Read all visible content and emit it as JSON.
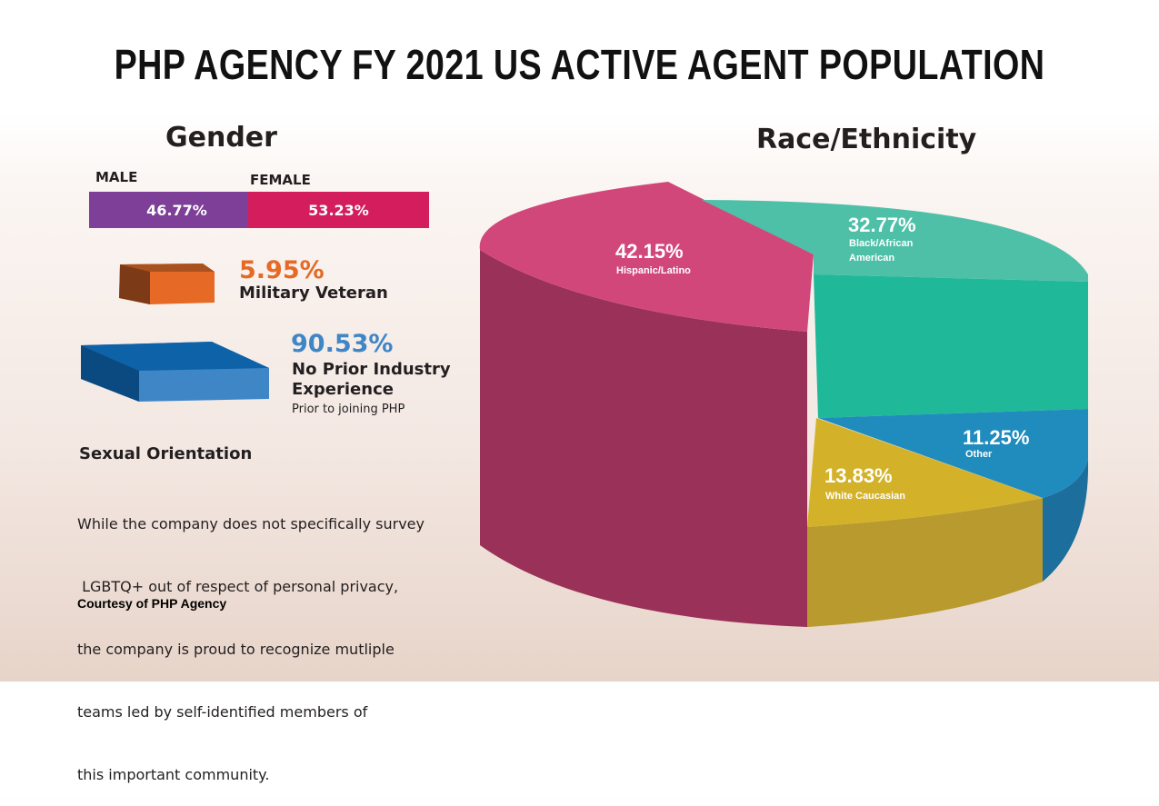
{
  "title": "PHP AGENCY FY 2021 US ACTIVE AGENT POPULATION",
  "gender": {
    "heading": "Gender",
    "male_label": "MALE",
    "female_label": "FEMALE",
    "male_value": "46.77%",
    "female_value": "53.23%",
    "male_percent": 46.77,
    "female_percent": 53.23,
    "male_color": "#7d3f98",
    "female_color": "#d31d5c"
  },
  "military": {
    "value": "5.95%",
    "label": "Military Veteran",
    "color": "#e66a25"
  },
  "experience": {
    "value": "90.53%",
    "label_line1": "No Prior Industry",
    "label_line2": "Experience",
    "sublabel": "Prior to joining PHP",
    "color": "#3f86c6"
  },
  "orientation": {
    "heading": "Sexual Orientation",
    "lines": [
      "While the company does not specifically survey",
      " LGBTQ+ out of respect of personal privacy,",
      "the company is proud to recognize mutliple",
      "teams led by self-identified members of",
      "this important community."
    ]
  },
  "credit": "Courtesy of PHP Agency",
  "chart_data": {
    "type": "pie",
    "title": "Race/Ethnicity",
    "slices": [
      {
        "label": "Hispanic/Latino",
        "value": 42.15,
        "display": "42.15%",
        "color": "#d2477a"
      },
      {
        "label_line1": "Black/African",
        "label_line2": "American",
        "label": "Black/African American",
        "value": 32.77,
        "display": "32.77%",
        "color": "#1fb898"
      },
      {
        "label": "Other",
        "value": 11.25,
        "display": "11.25%",
        "color": "#208bbd"
      },
      {
        "label": "White Caucasian",
        "value": 13.83,
        "display": "13.83%",
        "color": "#d3b22a"
      }
    ]
  }
}
